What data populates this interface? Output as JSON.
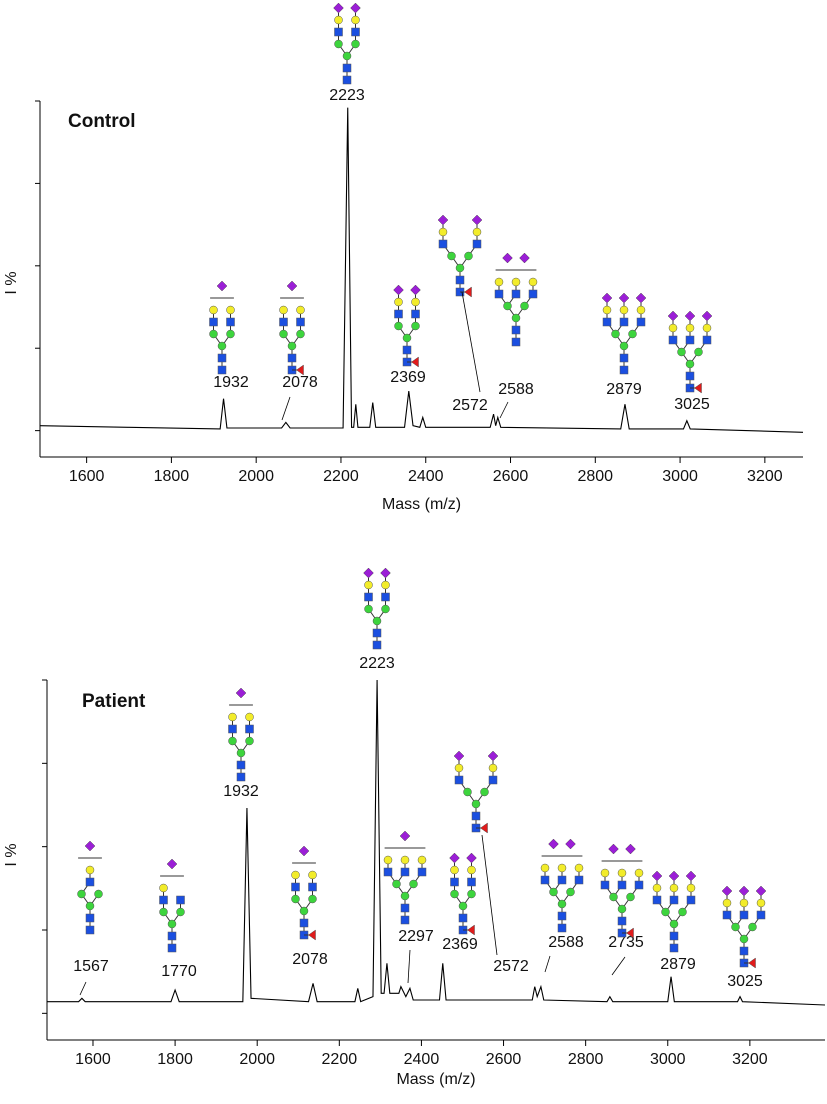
{
  "chart_data": [
    {
      "type": "line",
      "title": "Control",
      "x_label": "Mass (m/z)",
      "y_label": "I %",
      "color": "#000000",
      "x": [
        1490,
        1700,
        1915,
        1923,
        1931,
        2060,
        2070,
        2080,
        2205,
        2216,
        2225,
        2230,
        2235,
        2240,
        2268,
        2275,
        2282,
        2350,
        2360,
        2370,
        2386,
        2393,
        2400,
        2552,
        2560,
        2565,
        2570,
        2577,
        2860,
        2870,
        2880,
        3008,
        3016,
        3024,
        3290
      ],
      "values": [
        1.5,
        1,
        0.5,
        9.7,
        0.8,
        0.8,
        2.5,
        0.8,
        0.8,
        98,
        1,
        1,
        8,
        1,
        1,
        8.5,
        1,
        1,
        12,
        1.5,
        1,
        4,
        1,
        1,
        5,
        1.5,
        4,
        1,
        0.5,
        8,
        0.5,
        0.5,
        3,
        0.5,
        -0.5
      ],
      "xlim": [
        1490,
        3290
      ],
      "xticks": [
        1600,
        1800,
        2000,
        2200,
        2400,
        2600,
        2800,
        3000,
        3200
      ],
      "ylim": [
        -8,
        100
      ],
      "yticks": [
        0,
        25,
        50,
        75,
        100
      ],
      "annotations": [
        "1932",
        "2078",
        "2223",
        "2369",
        "2572",
        "2588",
        "2879",
        "3025"
      ]
    },
    {
      "type": "line",
      "title": "Patient",
      "x_label": "Mass (m/z)",
      "y_label": "I %",
      "color": "#000000",
      "x": [
        1488,
        1565,
        1573,
        1581,
        1790,
        1800,
        1810,
        1965,
        1975,
        1985,
        2125,
        2136,
        2146,
        2238,
        2245,
        2252,
        2282,
        2292,
        2302,
        2309,
        2316,
        2323,
        2345,
        2350,
        2362,
        2372,
        2380,
        2444,
        2452,
        2460,
        2670,
        2676,
        2682,
        2691,
        2698,
        2852,
        2859,
        2866,
        3000,
        3008,
        3016,
        3170,
        3176,
        3182,
        3383
      ],
      "values": [
        3.5,
        3.5,
        4.5,
        3.5,
        3.5,
        7,
        3.5,
        3.5,
        61.6,
        4.5,
        3.5,
        9,
        3.5,
        3.5,
        7.5,
        3.5,
        5,
        100,
        6,
        6,
        15,
        6,
        6,
        8,
        5,
        7.5,
        4,
        4,
        15,
        4,
        4,
        8,
        5,
        8,
        4,
        3.5,
        5,
        3.5,
        3.5,
        11,
        3.5,
        3.5,
        5,
        3.5,
        2.5
      ],
      "xlim": [
        1488,
        3383
      ],
      "xticks": [
        1600,
        1800,
        2000,
        2200,
        2400,
        2600,
        2800,
        3000,
        3200
      ],
      "ylim": [
        -8,
        100
      ],
      "yticks": [
        0,
        25,
        50,
        75,
        100
      ],
      "annotations": [
        "1567",
        "1770",
        "1932",
        "2078",
        "2223",
        "2297",
        "2369",
        "2572",
        "2588",
        "2735",
        "2879",
        "3025"
      ]
    }
  ]
}
